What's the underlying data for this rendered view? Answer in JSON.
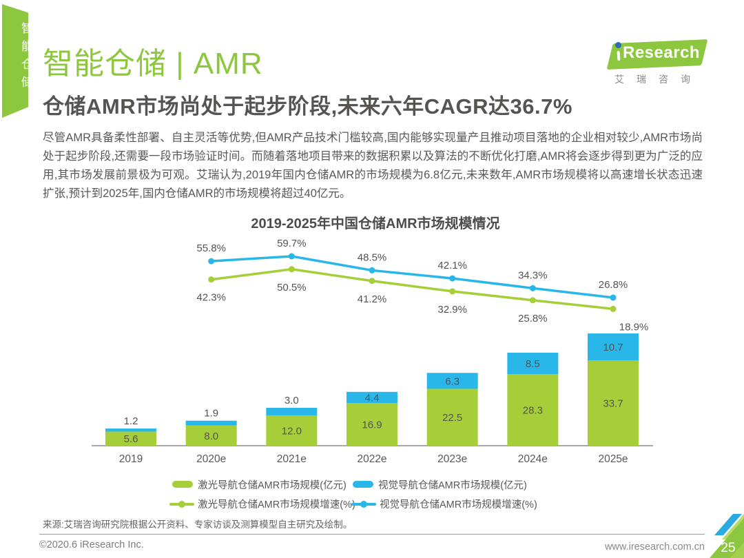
{
  "sidebar": {
    "tab_label": "智能仓储"
  },
  "header": {
    "title": "智能仓储 | AMR",
    "headline": "仓储AMR市场尚处于起步阶段,未来六年CAGR达36.7%",
    "logo": {
      "brand": "Research",
      "subtext": "艾瑞咨询"
    }
  },
  "intro_paragraph": "尽管AMR具备柔性部署、自主灵活等优势,但AMR产品技术门槛较高,国内能够实现量产且推动项目落地的企业相对较少,AMR市场尚处于起步阶段,还需要一段市场验证时间。而随着落地项目带来的数据积累以及算法的不断优化打磨,AMR将会逐步得到更为广泛的应用,其市场发展前景极为可观。艾瑞认为,2019年国内仓储AMR的市场规模为6.8亿元,未来数年,AMR市场规模将以高速增长状态迅速扩张,预计到2025年,国内仓储AMR的市场规模将超过40亿元。",
  "chart_data": {
    "type": "combo-stacked-bar-line",
    "title": "2019-2025年中国仓储AMR市场规模情况",
    "categories": [
      "2019",
      "2020e",
      "2021e",
      "2022e",
      "2023e",
      "2024e",
      "2025e"
    ],
    "bar_series": [
      {
        "name": "激光导航仓储AMR市场规模(亿元)",
        "color": "#a5ce39",
        "values": [
          5.6,
          8.0,
          12.0,
          16.9,
          22.5,
          28.3,
          33.7
        ]
      },
      {
        "name": "视觉导航仓储AMR市场规模(亿元)",
        "color": "#29b7ea",
        "values": [
          1.2,
          1.9,
          3.0,
          4.4,
          6.3,
          8.5,
          10.7
        ]
      }
    ],
    "line_series": [
      {
        "name": "激光导航仓储AMR市场规模增速(%)",
        "color": "#a5ce39",
        "label_position": "below",
        "x_categories": [
          "2020e",
          "2021e",
          "2022e",
          "2023e",
          "2024e",
          "2025e"
        ],
        "values": [
          42.3,
          50.5,
          41.2,
          32.9,
          25.8,
          18.9
        ]
      },
      {
        "name": "视觉导航仓储AMR市场规模增速(%)",
        "color": "#29b7ea",
        "label_position": "above",
        "x_categories": [
          "2020e",
          "2021e",
          "2022e",
          "2023e",
          "2024e",
          "2025e"
        ],
        "values": [
          55.8,
          59.7,
          48.5,
          42.1,
          34.3,
          26.8
        ]
      }
    ],
    "value_labels": "shown",
    "value_axes_visible": false,
    "gridlines": false,
    "legend_position": "bottom"
  },
  "footer": {
    "source": "来源:艾瑞咨询研究院根据公开资料、专家访谈及测算模型自主研究及绘制。",
    "copyright": "©2020.6 iResearch Inc.",
    "website": "www.iresearch.com.cn",
    "page_number": "25"
  },
  "colors": {
    "brand_green": "#8dc63f",
    "bar_green": "#a5ce39",
    "bar_blue": "#29b7ea",
    "corner_blue": "#29abe2",
    "dark_text": "#595757"
  }
}
